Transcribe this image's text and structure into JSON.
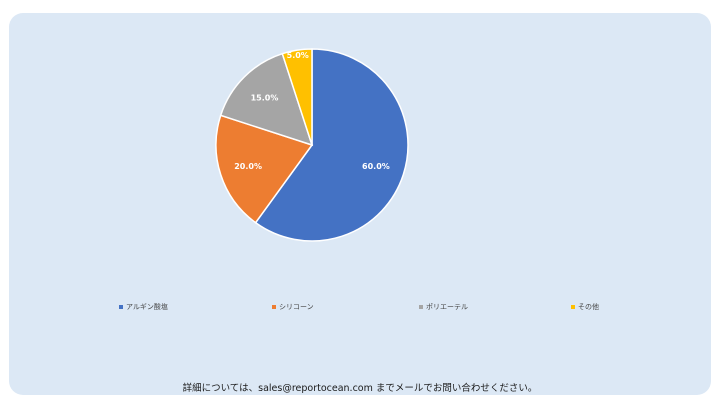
{
  "chart_data": {
    "type": "pie",
    "categories": [
      "アルギン酸塩",
      "シリコーン",
      "ポリエーテル",
      "その他"
    ],
    "values": [
      60.0,
      20.0,
      15.0,
      5.0
    ],
    "labels": [
      "60.0%",
      "20.0%",
      "15.0%",
      "5.0%"
    ],
    "colors": [
      "#4472c4",
      "#ed7d31",
      "#a5a5a5",
      "#ffc000"
    ],
    "legend_position": "bottom"
  },
  "footer_text": "詳細については、sales@reportocean.com までメールでお問い合わせください。"
}
